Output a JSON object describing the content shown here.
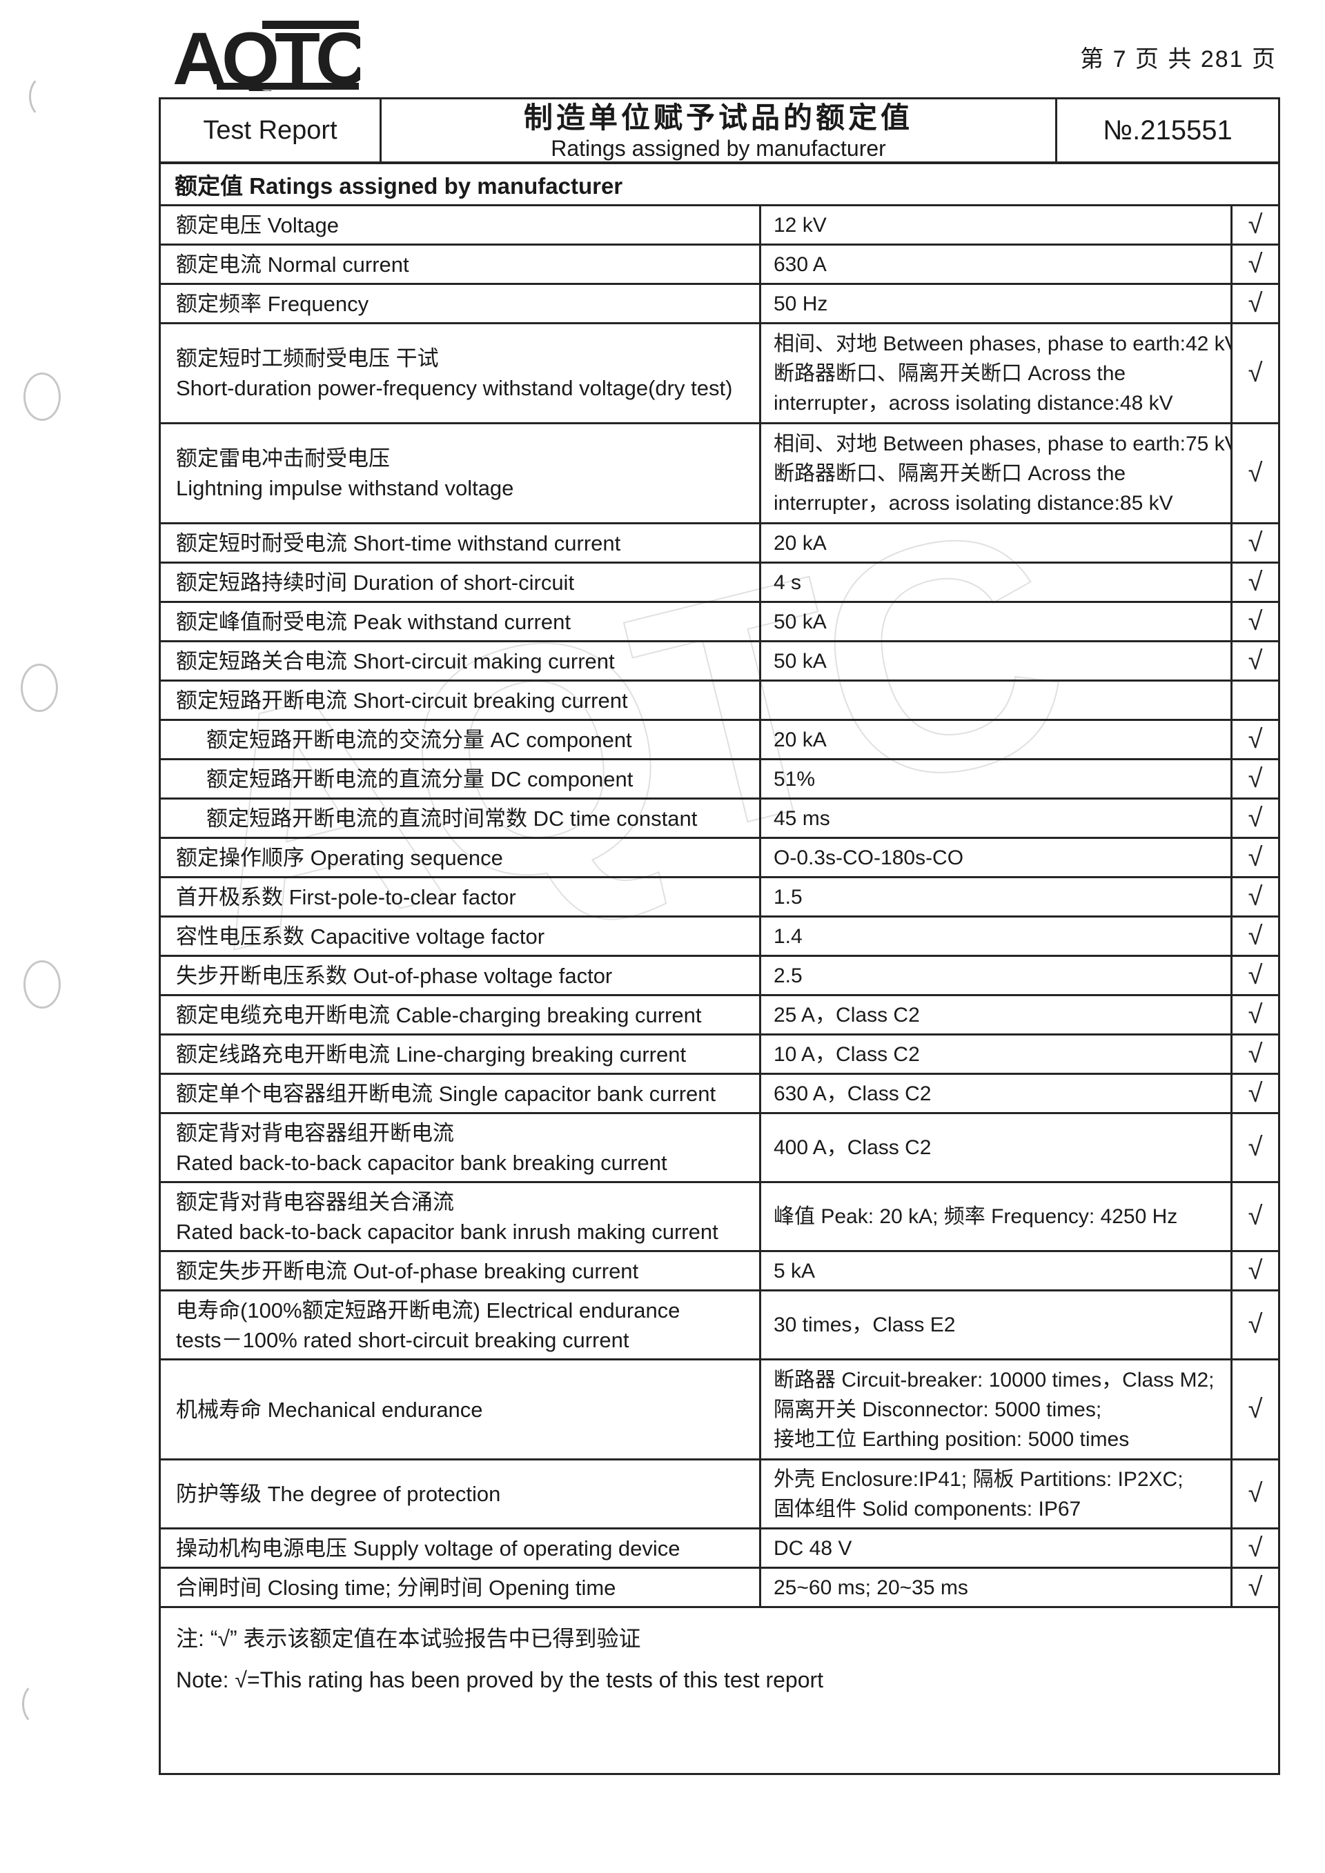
{
  "page": {
    "page_info": "第 7 页  共 281 页"
  },
  "logo": {
    "text": "AQTC"
  },
  "header": {
    "left": "Test Report",
    "title_zh": "制造单位赋予试品的额定值",
    "title_en": "Ratings assigned by manufacturer",
    "report_no": "№.215551"
  },
  "table": {
    "section_header": "额定值 Ratings assigned by manufacturer",
    "check_symbol": "√",
    "rows": [
      {
        "label": [
          "额定电压 Voltage"
        ],
        "value": [
          "12 kV"
        ],
        "checked": true
      },
      {
        "label": [
          "额定电流 Normal current"
        ],
        "value": [
          "630 A"
        ],
        "checked": true
      },
      {
        "label": [
          "额定频率 Frequency"
        ],
        "value": [
          "50 Hz"
        ],
        "checked": true
      },
      {
        "label": [
          "额定短时工频耐受电压  干试",
          "Short-duration power-frequency withstand voltage(dry test)"
        ],
        "value": [
          "相间、对地 Between phases, phase to earth:42 kV,",
          "断路器断口、隔离开关断口 Across the",
          "interrupter，across isolating distance:48 kV"
        ],
        "checked": true
      },
      {
        "label": [
          "额定雷电冲击耐受电压",
          "Lightning impulse withstand voltage"
        ],
        "value": [
          "相间、对地 Between phases, phase to earth:75 kV,",
          "断路器断口、隔离开关断口 Across the",
          "interrupter，across isolating distance:85 kV"
        ],
        "checked": true
      },
      {
        "label": [
          "额定短时耐受电流 Short-time withstand current"
        ],
        "value": [
          "20 kA"
        ],
        "checked": true
      },
      {
        "label": [
          "额定短路持续时间 Duration of short-circuit"
        ],
        "value": [
          "4 s"
        ],
        "checked": true
      },
      {
        "label": [
          "额定峰值耐受电流 Peak withstand current"
        ],
        "value": [
          "50 kA"
        ],
        "checked": true
      },
      {
        "label": [
          "额定短路关合电流 Short-circuit making current"
        ],
        "value": [
          "50 kA"
        ],
        "checked": true
      },
      {
        "label": [
          "额定短路开断电流 Short-circuit breaking current"
        ],
        "value": [],
        "checked": false
      },
      {
        "label": [
          "额定短路开断电流的交流分量 AC component"
        ],
        "value": [
          "20 kA"
        ],
        "checked": true,
        "indent": true
      },
      {
        "label": [
          "额定短路开断电流的直流分量 DC component"
        ],
        "value": [
          "51%"
        ],
        "checked": true,
        "indent": true
      },
      {
        "label": [
          "额定短路开断电流的直流时间常数 DC time constant"
        ],
        "value": [
          "45 ms"
        ],
        "checked": true,
        "indent": true
      },
      {
        "label": [
          "额定操作顺序 Operating sequence"
        ],
        "value": [
          "O-0.3s-CO-180s-CO"
        ],
        "checked": true
      },
      {
        "label": [
          "首开极系数 First-pole-to-clear factor"
        ],
        "value": [
          "1.5"
        ],
        "checked": true
      },
      {
        "label": [
          "容性电压系数 Capacitive voltage factor"
        ],
        "value": [
          "1.4"
        ],
        "checked": true
      },
      {
        "label": [
          "失步开断电压系数 Out-of-phase voltage factor"
        ],
        "value": [
          "2.5"
        ],
        "checked": true
      },
      {
        "label": [
          "额定电缆充电开断电流 Cable-charging breaking current"
        ],
        "value": [
          "25 A，Class C2"
        ],
        "checked": true
      },
      {
        "label": [
          "额定线路充电开断电流 Line-charging breaking current"
        ],
        "value": [
          "10 A，Class C2"
        ],
        "checked": true
      },
      {
        "label": [
          "额定单个电容器组开断电流 Single capacitor bank current"
        ],
        "value": [
          "630 A，Class C2"
        ],
        "checked": true
      },
      {
        "label": [
          "额定背对背电容器组开断电流",
          "Rated back-to-back capacitor bank breaking current"
        ],
        "value": [
          "400 A，Class C2"
        ],
        "checked": true
      },
      {
        "label": [
          "额定背对背电容器组关合涌流",
          "Rated back-to-back capacitor bank inrush making current"
        ],
        "value": [
          "峰值 Peak: 20 kA; 频率 Frequency: 4250 Hz"
        ],
        "checked": true
      },
      {
        "label": [
          "额定失步开断电流 Out-of-phase breaking current"
        ],
        "value": [
          "5 kA"
        ],
        "checked": true
      },
      {
        "label": [
          "电寿命(100%额定短路开断电流) Electrical endurance",
          "tests－100%  rated short-circuit breaking current"
        ],
        "value": [
          "30 times，Class E2"
        ],
        "checked": true
      },
      {
        "label": [
          "机械寿命 Mechanical endurance"
        ],
        "value": [
          "断路器 Circuit-breaker: 10000 times，Class M2;",
          "隔离开关 Disconnector:  5000 times;",
          "接地工位 Earthing position:  5000 times"
        ],
        "checked": true
      },
      {
        "label": [
          "防护等级 The degree of protection"
        ],
        "value": [
          "外壳 Enclosure:IP41;  隔板 Partitions: IP2XC;",
          "固体组件 Solid components: IP67"
        ],
        "checked": true
      },
      {
        "label": [
          "操动机构电源电压 Supply voltage of operating device"
        ],
        "value": [
          "DC 48 V"
        ],
        "checked": true
      },
      {
        "label": [
          "合闸时间 Closing time;  分闸时间 Opening time"
        ],
        "value": [
          "25~60 ms;  20~35 ms"
        ],
        "checked": true
      }
    ]
  },
  "note": {
    "line1": "注: “√” 表示该额定值在本试验报告中已得到验证",
    "line2": "Note:  √=This rating has been proved by the tests of this test report"
  },
  "watermark": "AQTC"
}
